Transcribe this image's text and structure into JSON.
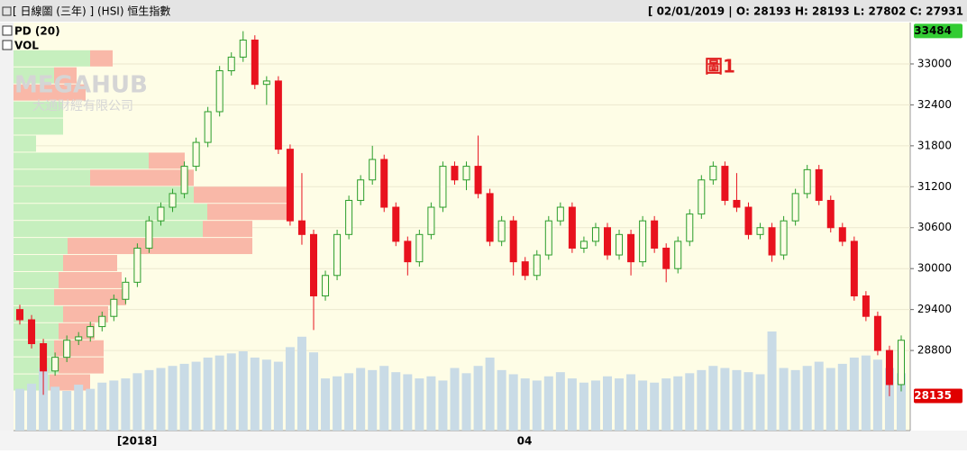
{
  "header": {
    "title": "[ 日線圖 (三年) ] (HSI) 恒生指數",
    "info": "[ 02/01/2019 | O: 28193 H: 28193 L: 27802 C: 27931"
  },
  "panel_labels": [
    "PD (20)",
    "VOL"
  ],
  "watermark": {
    "name": "MEGAHUB",
    "sub": "大通財經有限公司"
  },
  "chart_data": {
    "type": "candlestick",
    "annotation": "圖1",
    "ylim": [
      27626,
      33607
    ],
    "yticks": [
      28800,
      29400,
      30000,
      30600,
      31200,
      31800,
      32400,
      33000
    ],
    "grid": true,
    "up_color": "#2a9d2a",
    "down_color": "#e8121e",
    "volume_color": "#c9dbe6",
    "x_labels": [
      "[2018]",
      "04"
    ],
    "markers": [
      {
        "value": 33484,
        "color": "#33cc33"
      },
      {
        "value": 28135,
        "color": "#e00000"
      }
    ],
    "ohlc": [
      [
        29400,
        29470,
        29180,
        29250
      ],
      [
        29250,
        29320,
        28830,
        28900
      ],
      [
        28900,
        28970,
        28150,
        28500
      ],
      [
        28500,
        28770,
        28430,
        28700
      ],
      [
        28700,
        29020,
        28630,
        28950
      ],
      [
        28950,
        29070,
        28880,
        29000
      ],
      [
        29000,
        29220,
        28930,
        29150
      ],
      [
        29150,
        29370,
        29080,
        29300
      ],
      [
        29300,
        29620,
        29230,
        29550
      ],
      [
        29550,
        29870,
        29480,
        29800
      ],
      [
        29800,
        30370,
        29730,
        30300
      ],
      [
        30300,
        30770,
        30230,
        30700
      ],
      [
        30700,
        30970,
        30630,
        30900
      ],
      [
        30900,
        31170,
        30830,
        31100
      ],
      [
        31100,
        31570,
        31030,
        31500
      ],
      [
        31500,
        31920,
        31430,
        31850
      ],
      [
        31850,
        32370,
        31780,
        32300
      ],
      [
        32300,
        32970,
        32230,
        32900
      ],
      [
        32900,
        33170,
        32830,
        33100
      ],
      [
        33100,
        33480,
        33030,
        33350
      ],
      [
        33350,
        33420,
        32630,
        32700
      ],
      [
        32700,
        32820,
        32400,
        32750
      ],
      [
        32750,
        32820,
        31680,
        31750
      ],
      [
        31750,
        31820,
        30630,
        30700
      ],
      [
        30700,
        31400,
        30350,
        30500
      ],
      [
        30500,
        30570,
        29100,
        29600
      ],
      [
        29600,
        29970,
        29530,
        29900
      ],
      [
        29900,
        30570,
        29830,
        30500
      ],
      [
        30500,
        31070,
        30430,
        31000
      ],
      [
        31000,
        31370,
        30930,
        31300
      ],
      [
        31300,
        31800,
        31230,
        31600
      ],
      [
        31600,
        31670,
        30830,
        30900
      ],
      [
        30900,
        30970,
        30330,
        30400
      ],
      [
        30400,
        30470,
        29900,
        30100
      ],
      [
        30100,
        30570,
        30030,
        30500
      ],
      [
        30500,
        30970,
        30430,
        30900
      ],
      [
        30900,
        31570,
        30830,
        31500
      ],
      [
        31500,
        31570,
        31230,
        31300
      ],
      [
        31300,
        31570,
        31150,
        31500
      ],
      [
        31500,
        31950,
        31030,
        31100
      ],
      [
        31100,
        31170,
        30330,
        30400
      ],
      [
        30400,
        30770,
        30330,
        30700
      ],
      [
        30700,
        30770,
        29900,
        30100
      ],
      [
        30100,
        30170,
        29830,
        29900
      ],
      [
        29900,
        30270,
        29830,
        30200
      ],
      [
        30200,
        30770,
        30130,
        30700
      ],
      [
        30700,
        30970,
        30630,
        30900
      ],
      [
        30900,
        30970,
        30230,
        30300
      ],
      [
        30300,
        30470,
        30230,
        30400
      ],
      [
        30400,
        30670,
        30330,
        30600
      ],
      [
        30600,
        30670,
        30130,
        30200
      ],
      [
        30200,
        30570,
        30130,
        30500
      ],
      [
        30500,
        30570,
        29900,
        30100
      ],
      [
        30100,
        30770,
        30030,
        30700
      ],
      [
        30700,
        30770,
        30230,
        30300
      ],
      [
        30300,
        30370,
        29800,
        30000
      ],
      [
        30000,
        30470,
        29930,
        30400
      ],
      [
        30400,
        30870,
        30330,
        30800
      ],
      [
        30800,
        31370,
        30730,
        31300
      ],
      [
        31300,
        31570,
        31230,
        31500
      ],
      [
        31500,
        31570,
        30930,
        31000
      ],
      [
        31000,
        31400,
        30830,
        30900
      ],
      [
        30900,
        30970,
        30430,
        30500
      ],
      [
        30500,
        30670,
        30430,
        30600
      ],
      [
        30600,
        30670,
        30100,
        30200
      ],
      [
        30200,
        30770,
        30130,
        30700
      ],
      [
        30700,
        31170,
        30630,
        31100
      ],
      [
        31100,
        31520,
        31030,
        31450
      ],
      [
        31450,
        31520,
        30930,
        31000
      ],
      [
        31000,
        31070,
        30530,
        30600
      ],
      [
        30600,
        30670,
        30330,
        30400
      ],
      [
        30400,
        30470,
        29530,
        29600
      ],
      [
        29600,
        29670,
        29230,
        29300
      ],
      [
        29300,
        29370,
        28730,
        28800
      ],
      [
        28800,
        28870,
        28130,
        28300
      ],
      [
        28300,
        29020,
        28200,
        28950
      ]
    ],
    "volume": [
      40,
      45,
      60,
      42,
      38,
      44,
      40,
      46,
      48,
      50,
      55,
      58,
      60,
      62,
      64,
      66,
      70,
      72,
      74,
      76,
      70,
      68,
      66,
      80,
      90,
      75,
      50,
      52,
      55,
      60,
      58,
      62,
      56,
      54,
      50,
      52,
      48,
      60,
      55,
      62,
      70,
      58,
      54,
      50,
      48,
      52,
      56,
      50,
      46,
      48,
      52,
      50,
      54,
      48,
      46,
      50,
      52,
      55,
      58,
      62,
      60,
      58,
      56,
      54,
      95,
      60,
      58,
      62,
      66,
      60,
      64,
      70,
      72,
      68,
      60,
      55
    ],
    "volume_profile": {
      "bands": [
        28200,
        28450,
        28700,
        28950,
        29200,
        29450,
        29700,
        29950,
        30200,
        30450,
        30700,
        30950,
        31200,
        31450,
        31700,
        31950,
        32200,
        32450,
        32700,
        32950,
        33200
      ],
      "up": [
        40,
        50,
        45,
        50,
        55,
        45,
        50,
        55,
        60,
        210,
        215,
        200,
        85,
        150,
        25,
        55,
        55,
        0,
        45,
        85
      ],
      "down": [
        45,
        50,
        55,
        40,
        50,
        80,
        70,
        60,
        205,
        55,
        90,
        110,
        115,
        40,
        0,
        0,
        0,
        80,
        25,
        25
      ],
      "up_color": "#c6efbe",
      "down_color": "#f9b8a8"
    }
  }
}
